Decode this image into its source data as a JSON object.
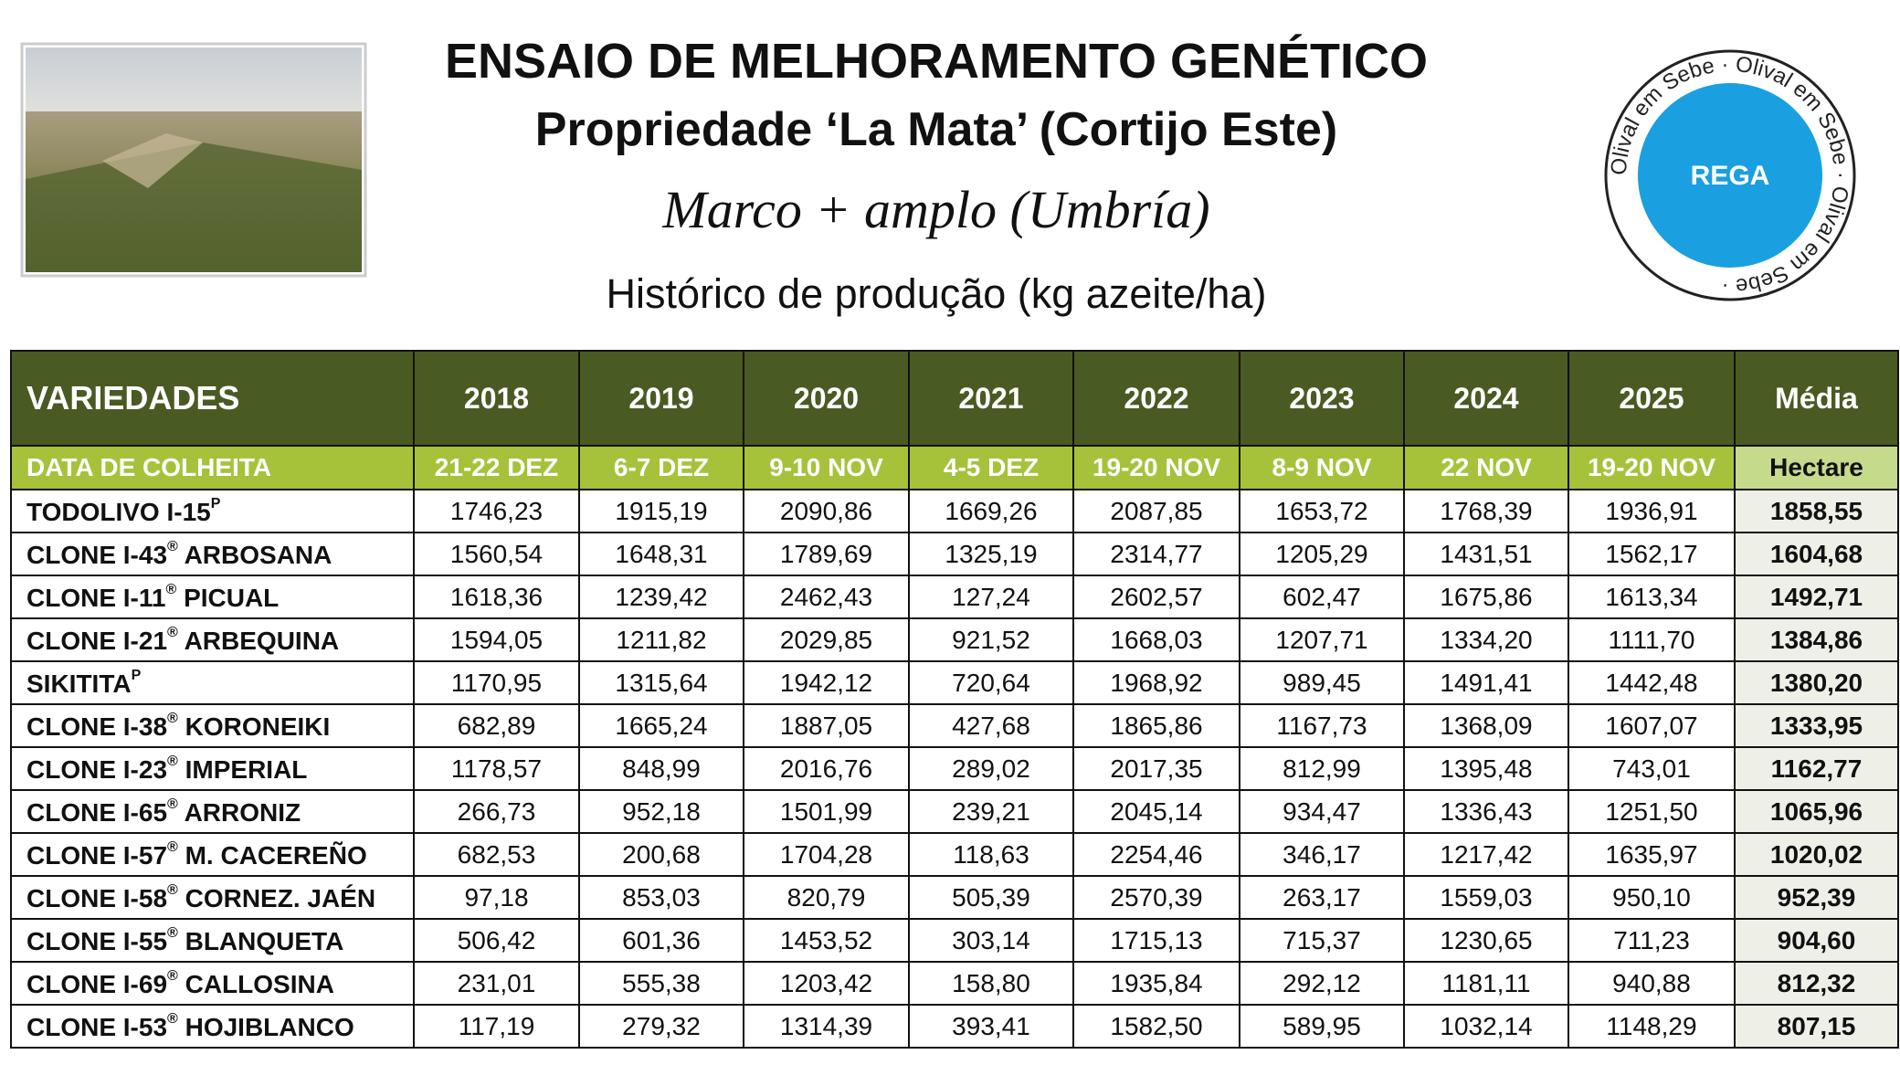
{
  "header": {
    "title": "ENSAIO DE MELHORAMENTO GENÉTICO",
    "subtitle": "Propriedade ‘La Mata’ (Cortijo Este)",
    "handwritten": "Marco + amplo (Umbría)",
    "caption": "Histórico de produção (kg azeite/ha)"
  },
  "badge": {
    "label": "REGA",
    "ring_text": "Olival em Sebe · Olival em Sebe · Olival em Sebe ·"
  },
  "table": {
    "columns": [
      "VARIEDADES",
      "2018",
      "2019",
      "2020",
      "2021",
      "2022",
      "2023",
      "2024",
      "2025",
      "Média"
    ],
    "harvest": [
      "DATA DE COLHEITA",
      "21-22 DEZ",
      "6-7 DEZ",
      "9-10 NOV",
      "4-5 DEZ",
      "19-20 NOV",
      "8-9 NOV",
      "22 NOV",
      "19-20 NOV",
      "Hectare"
    ],
    "rows": [
      {
        "variety": {
          "main": "TODOLIVO I-15",
          "sup": "P"
        },
        "values": [
          "1746,23",
          "1915,19",
          "2090,86",
          "1669,26",
          "2087,85",
          "1653,72",
          "1768,39",
          "1936,91"
        ],
        "media": "1858,55"
      },
      {
        "variety": {
          "main": "CLONE I-43",
          "sup": "®",
          "rest": "ARBOSANA"
        },
        "values": [
          "1560,54",
          "1648,31",
          "1789,69",
          "1325,19",
          "2314,77",
          "1205,29",
          "1431,51",
          "1562,17"
        ],
        "media": "1604,68"
      },
      {
        "variety": {
          "main": "CLONE I-11",
          "sup": "®",
          "rest": "PICUAL"
        },
        "values": [
          "1618,36",
          "1239,42",
          "2462,43",
          "127,24",
          "2602,57",
          "602,47",
          "1675,86",
          "1613,34"
        ],
        "media": "1492,71"
      },
      {
        "variety": {
          "main": "CLONE I-21",
          "sup": "®",
          "rest": "ARBEQUINA"
        },
        "values": [
          "1594,05",
          "1211,82",
          "2029,85",
          "921,52",
          "1668,03",
          "1207,71",
          "1334,20",
          "1111,70"
        ],
        "media": "1384,86"
      },
      {
        "variety": {
          "main": "SIKITITA",
          "sup": "P"
        },
        "values": [
          "1170,95",
          "1315,64",
          "1942,12",
          "720,64",
          "1968,92",
          "989,45",
          "1491,41",
          "1442,48"
        ],
        "media": "1380,20"
      },
      {
        "variety": {
          "main": "CLONE I-38",
          "sup": "®",
          "rest": "KORONEIKI"
        },
        "values": [
          "682,89",
          "1665,24",
          "1887,05",
          "427,68",
          "1865,86",
          "1167,73",
          "1368,09",
          "1607,07"
        ],
        "media": "1333,95"
      },
      {
        "variety": {
          "main": "CLONE I-23",
          "sup": "®",
          "rest": "IMPERIAL"
        },
        "values": [
          "1178,57",
          "848,99",
          "2016,76",
          "289,02",
          "2017,35",
          "812,99",
          "1395,48",
          "743,01"
        ],
        "media": "1162,77"
      },
      {
        "variety": {
          "main": "CLONE I-65",
          "sup": "®",
          "rest": "ARRONIZ"
        },
        "values": [
          "266,73",
          "952,18",
          "1501,99",
          "239,21",
          "2045,14",
          "934,47",
          "1336,43",
          "1251,50"
        ],
        "media": "1065,96"
      },
      {
        "variety": {
          "main": "CLONE I-57",
          "sup": "®",
          "rest": "M. CACEREÑO"
        },
        "values": [
          "682,53",
          "200,68",
          "1704,28",
          "118,63",
          "2254,46",
          "346,17",
          "1217,42",
          "1635,97"
        ],
        "media": "1020,02"
      },
      {
        "variety": {
          "main": "CLONE I-58",
          "sup": "®",
          "rest": "CORNEZ. JAÉN"
        },
        "values": [
          "97,18",
          "853,03",
          "820,79",
          "505,39",
          "2570,39",
          "263,17",
          "1559,03",
          "950,10"
        ],
        "media": "952,39"
      },
      {
        "variety": {
          "main": "CLONE I-55",
          "sup": "®",
          "rest": "BLANQUETA"
        },
        "values": [
          "506,42",
          "601,36",
          "1453,52",
          "303,14",
          "1715,13",
          "715,37",
          "1230,65",
          "711,23"
        ],
        "media": "904,60"
      },
      {
        "variety": {
          "main": "CLONE I-69",
          "sup": "®",
          "rest": "CALLOSINA"
        },
        "values": [
          "231,01",
          "555,38",
          "1203,42",
          "158,80",
          "1935,84",
          "292,12",
          "1181,11",
          "940,88"
        ],
        "media": "812,32"
      },
      {
        "variety": {
          "main": "CLONE I-53",
          "sup": "®",
          "rest": "HOJIBLANCO"
        },
        "values": [
          "117,19",
          "279,32",
          "1314,39",
          "393,41",
          "1582,50",
          "589,95",
          "1032,14",
          "1148,29"
        ],
        "media": "807,15"
      }
    ]
  }
}
